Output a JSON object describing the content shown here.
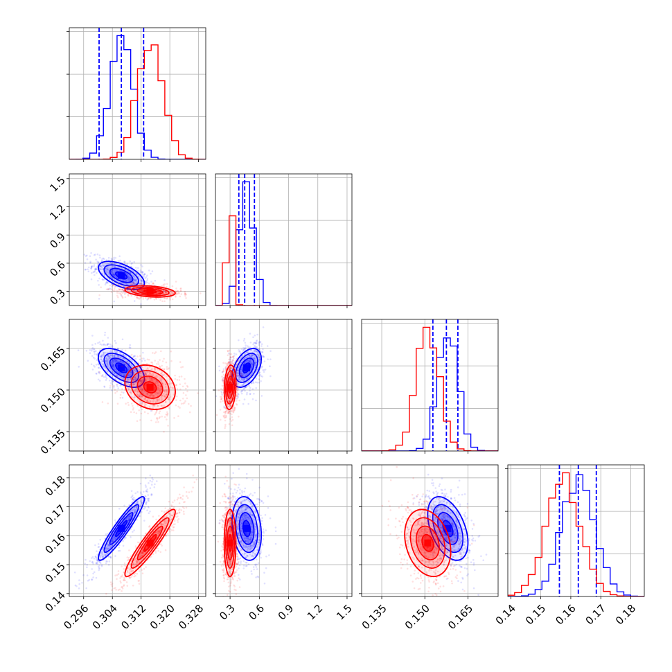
{
  "chart_data": {
    "type": "corner",
    "colors": {
      "series_a": "#0000ff",
      "series_b": "#ff0000",
      "grid": "#b0b0b0"
    },
    "grid": true,
    "parameters": [
      {
        "range": [
          0.292,
          0.33
        ],
        "ticks": [
          0.296,
          0.304,
          0.312,
          0.32,
          0.328
        ],
        "tick_labels": [
          "0.296",
          "0.304",
          "0.312",
          "0.320",
          "0.328"
        ]
      },
      {
        "range": [
          0.15,
          1.55
        ],
        "ticks": [
          0.3,
          0.6,
          0.9,
          1.2,
          1.5
        ],
        "tick_labels": [
          "0.3",
          "0.6",
          "0.9",
          "1.2",
          "1.5"
        ]
      },
      {
        "range": [
          0.128,
          0.1755
        ],
        "ticks": [
          0.135,
          0.15,
          0.165
        ],
        "tick_labels": [
          "0.135",
          "0.150",
          "0.165"
        ]
      },
      {
        "range": [
          0.139,
          0.1845
        ],
        "ticks": [
          0.14,
          0.15,
          0.16,
          0.17,
          0.18
        ],
        "tick_labels": [
          "0.14",
          "0.15",
          "0.16",
          "0.17",
          "0.18"
        ]
      }
    ],
    "series": [
      {
        "color": "#0000ff",
        "means": [
          0.3065,
          0.47,
          0.158,
          0.1625
        ],
        "sigmas": [
          0.0032,
          0.075,
          0.0035,
          0.0055
        ],
        "quantile_lines": [
          [
            0.3003,
            0.3065,
            0.3127
          ],
          [
            0.39,
            0.45,
            0.55
          ],
          [
            0.1528,
            0.1575,
            0.1615
          ],
          [
            0.1562,
            0.1625,
            0.1685
          ]
        ],
        "correlations": [
          [
            0,
            1,
            -0.55
          ],
          [
            0,
            2,
            -0.55
          ],
          [
            0,
            3,
            0.93
          ],
          [
            1,
            2,
            0.45
          ],
          [
            1,
            3,
            -0.2
          ],
          [
            2,
            3,
            -0.45
          ]
        ],
        "density_scale": 1.0
      },
      {
        "color": "#ff0000",
        "means": [
          0.3145,
          0.3,
          0.151,
          0.1575
        ],
        "sigmas": [
          0.0035,
          0.03,
          0.004,
          0.0058
        ],
        "quantile_lines": [],
        "correlations": [
          [
            0,
            1,
            -0.3
          ],
          [
            0,
            2,
            -0.2
          ],
          [
            0,
            3,
            0.93
          ],
          [
            1,
            2,
            0.15
          ],
          [
            1,
            3,
            0.0
          ],
          [
            2,
            3,
            -0.25
          ]
        ],
        "density_scale": 0.9
      }
    ],
    "histogram": {
      "bins": 20,
      "max_fraction": 0.94
    },
    "contour_levels_sigma": [
      0.5,
      1.0,
      1.5,
      2.0
    ],
    "scatter_points_per_panel": 700
  }
}
